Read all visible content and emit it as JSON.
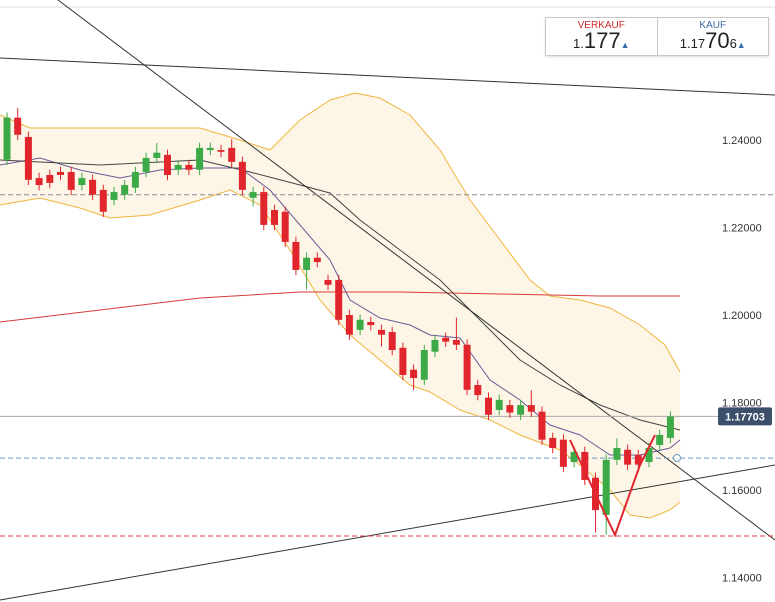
{
  "chart_data": {
    "type": "candlestick",
    "up_color": "#3caa46",
    "down_color": "#e0262c",
    "open": [
      1.2357,
      1.2453,
      1.2409,
      1.2315,
      1.2322,
      1.2329,
      1.2329,
      1.2299,
      1.2311,
      1.2288,
      1.2265,
      1.2277,
      1.2293,
      1.2329,
      1.2361,
      1.2368,
      1.2334,
      1.2345,
      1.2334,
      1.2379,
      1.2379,
      1.2384,
      1.2352,
      1.227,
      1.2283,
      1.2242,
      1.2238,
      1.2169,
      1.2105,
      1.2133,
      1.2082,
      1.2082,
      1.2002,
      1.1968,
      1.1986,
      1.1968,
      1.1963,
      1.1927,
      1.1877,
      1.1854,
      1.1918,
      1.195,
      1.1945,
      1.1934,
      1.1842,
      1.1813,
      1.1785,
      1.1796,
      1.1774,
      1.1796,
      1.1781,
      1.1721,
      1.1717,
      1.1666,
      1.1689,
      1.163,
      1.1545,
      1.1671,
      1.1694,
      1.1682,
      1.1666,
      1.1705,
      1.1721
    ],
    "high": [
      1.2465,
      1.2475,
      1.2421,
      1.2327,
      1.2334,
      1.2341,
      1.2341,
      1.2327,
      1.2323,
      1.23,
      1.2295,
      1.2311,
      1.2341,
      1.2373,
      1.2395,
      1.238,
      1.2357,
      1.2357,
      1.2396,
      1.2396,
      1.2391,
      1.2404,
      1.2364,
      1.2295,
      1.2295,
      1.2254,
      1.225,
      1.2181,
      1.2145,
      1.2145,
      1.2094,
      1.2094,
      1.2014,
      1.2003,
      1.1998,
      1.198,
      1.1975,
      1.1939,
      1.1889,
      1.1934,
      1.1957,
      1.1962,
      1.1996,
      1.1946,
      1.1854,
      1.1825,
      1.182,
      1.1808,
      1.1808,
      1.183,
      1.1793,
      1.1733,
      1.1729,
      1.1701,
      1.1701,
      1.1642,
      1.1683,
      1.172,
      1.1706,
      1.1694,
      1.171,
      1.174,
      1.1782
    ],
    "low": [
      1.2345,
      1.2402,
      1.2299,
      1.2287,
      1.2292,
      1.231,
      1.2276,
      1.2287,
      1.2265,
      1.2226,
      1.2253,
      1.2265,
      1.2281,
      1.2317,
      1.2349,
      1.231,
      1.2322,
      1.2322,
      1.2322,
      1.2367,
      1.2363,
      1.234,
      1.2276,
      1.225,
      1.2196,
      1.2196,
      1.2157,
      1.2093,
      1.206,
      1.2111,
      1.2059,
      1.1979,
      1.1945,
      1.1956,
      1.1967,
      1.193,
      1.191,
      1.1853,
      1.183,
      1.1842,
      1.1906,
      1.1929,
      1.1922,
      1.1819,
      1.1807,
      1.1762,
      1.1773,
      1.1767,
      1.1762,
      1.1769,
      1.1705,
      1.1686,
      1.1643,
      1.1654,
      1.1613,
      1.1505,
      1.15,
      1.1659,
      1.1648,
      1.1648,
      1.1654,
      1.1693,
      1.1709
    ],
    "close": [
      1.2453,
      1.2414,
      1.2311,
      1.2299,
      1.2304,
      1.2322,
      1.2288,
      1.2315,
      1.2277,
      1.2238,
      1.2283,
      1.2299,
      1.2329,
      1.2361,
      1.2373,
      1.2322,
      1.2345,
      1.2334,
      1.2384,
      1.2384,
      1.2375,
      1.2352,
      1.2288,
      1.2283,
      1.2208,
      1.2208,
      1.2169,
      1.2105,
      1.2133,
      1.2123,
      1.2071,
      1.1991,
      1.1957,
      1.1991,
      1.1979,
      1.1957,
      1.1922,
      1.1865,
      1.1858,
      1.1922,
      1.1945,
      1.1941,
      1.1934,
      1.1831,
      1.1819,
      1.1774,
      1.1808,
      1.1779,
      1.1796,
      1.1781,
      1.1717,
      1.1698,
      1.1655,
      1.1689,
      1.1625,
      1.1556,
      1.1671,
      1.1698,
      1.166,
      1.166,
      1.1698,
      1.1728,
      1.177
    ],
    "ylim": [
      1.1346,
      1.2722
    ],
    "yticks": [
      {
        "value": 1.24,
        "label": "1.24000"
      },
      {
        "value": 1.22,
        "label": "1.22000"
      },
      {
        "value": 1.2,
        "label": "1.20000"
      },
      {
        "value": 1.18,
        "label": "1.18000"
      },
      {
        "value": 1.16,
        "label": "1.16000"
      },
      {
        "value": 1.14,
        "label": "1.14000"
      }
    ],
    "grid": false,
    "current_price": {
      "value": 1.17703,
      "label": "1.17703"
    },
    "levels": [
      {
        "value": 1.2277,
        "color": "#8a8a9a"
      },
      {
        "value": 1.1675,
        "color": "#6a98c8"
      },
      {
        "value": 1.1497,
        "color": "#d04040"
      }
    ]
  },
  "quote": {
    "sell": {
      "label": "VERKAUF",
      "prefix": "1.",
      "main": "177"
    },
    "buy": {
      "label": "KAUF",
      "prefix": "1.17",
      "main": "70",
      "suffix": "6"
    }
  }
}
